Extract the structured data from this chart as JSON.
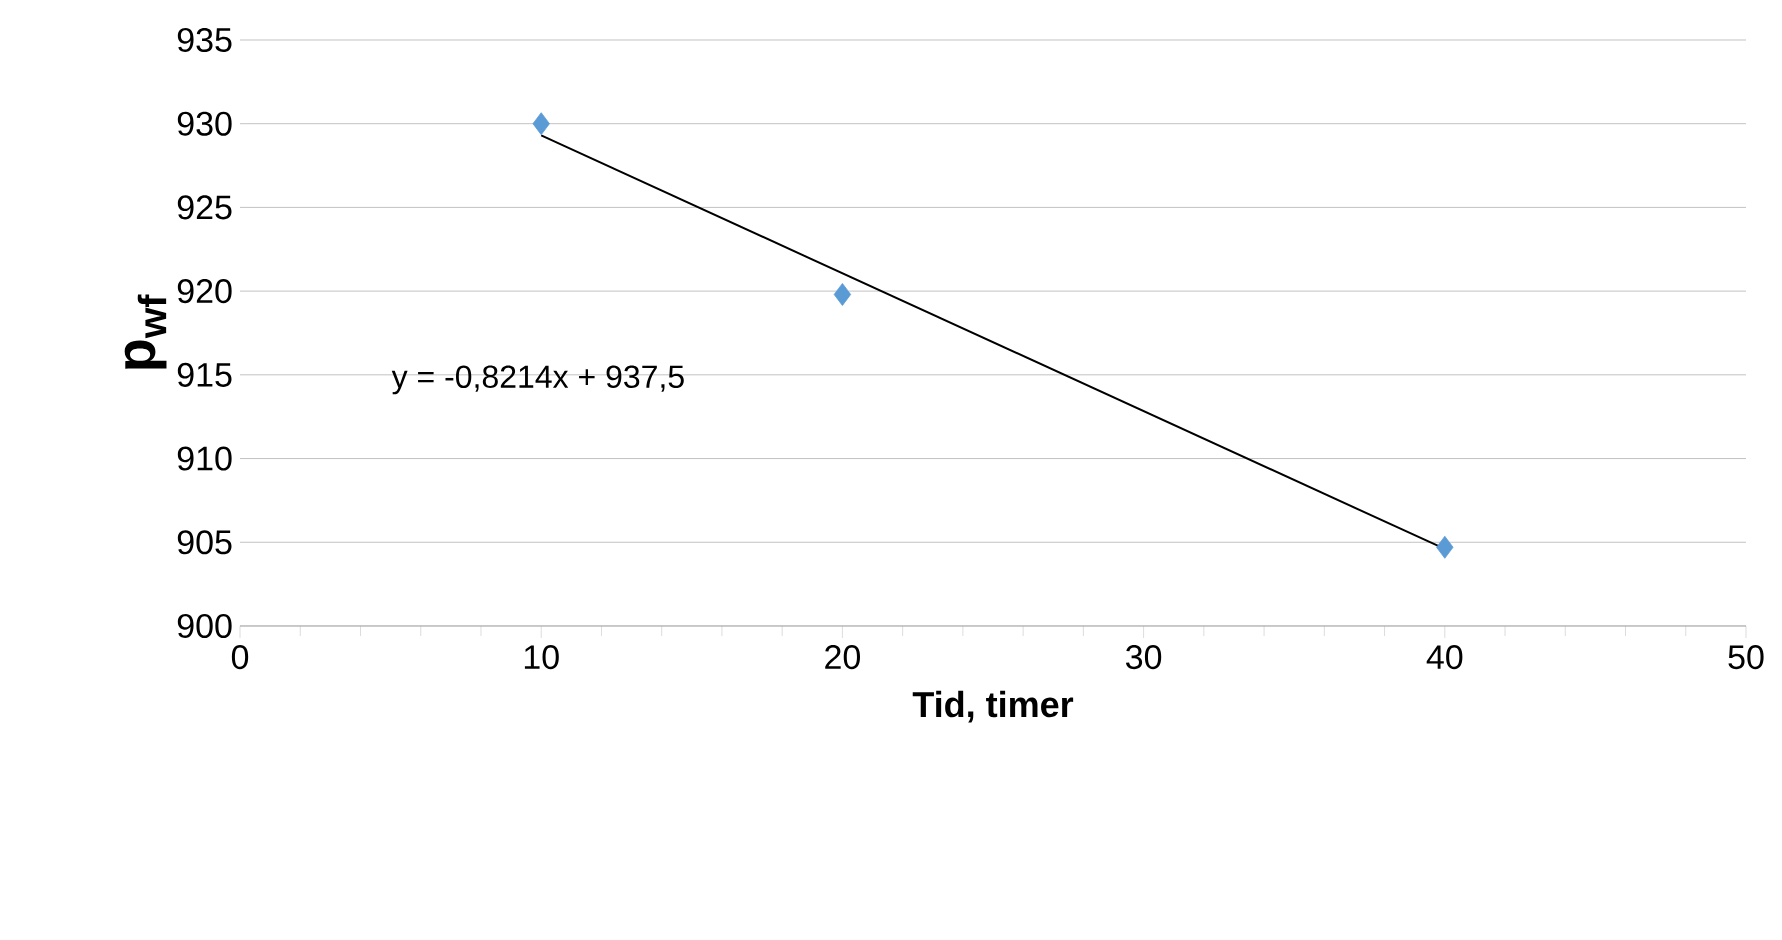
{
  "chart_data": {
    "type": "scatter",
    "xlabel": "Tid, timer",
    "ylabel": "**p$_{wf}$**",
    "series": [
      {
        "x": [
          10,
          20,
          40
        ],
        "values": [
          930,
          919.8,
          904.7
        ],
        "color": "#5b9bd5",
        "marker": "diamond"
      },
      {
        "type": "line",
        "x": [
          10,
          40
        ],
        "values": [
          929.3,
          904.6
        ],
        "color": "#000000",
        "marker": "none",
        "line_style": "solid"
      }
    ],
    "annotations": [
      "y = -0,8214x + 937,5"
    ],
    "xlim": [
      0,
      50
    ],
    "xticks": [
      0,
      10,
      20,
      30,
      40,
      50
    ],
    "ylim": [
      900,
      935
    ],
    "yticks": [
      900,
      905,
      910,
      915,
      920,
      925,
      930,
      935
    ],
    "grid": "y"
  }
}
